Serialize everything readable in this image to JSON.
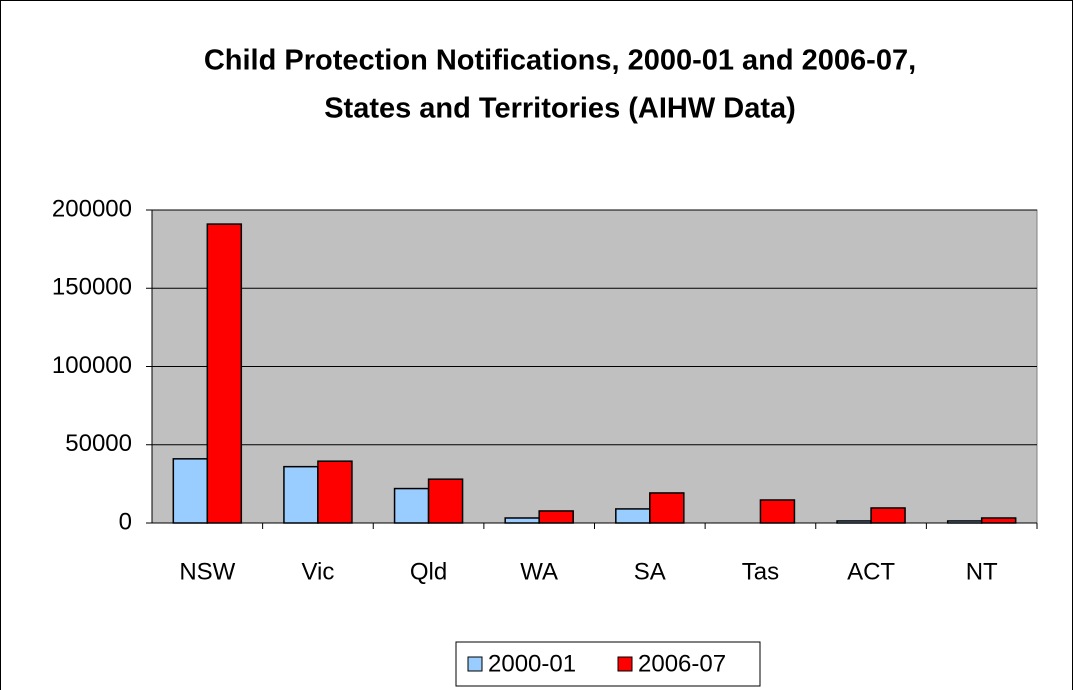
{
  "chart_data": {
    "type": "bar",
    "title": [
      "Child Protection Notifications, 2000-01 and 2006-07,",
      "States and Territories (AIHW Data)"
    ],
    "categories": [
      "NSW",
      "Vic",
      "Qld",
      "WA",
      "SA",
      "Tas",
      "ACT",
      "NT"
    ],
    "series": [
      {
        "name": "2000-01",
        "color": "#99ccff",
        "values": [
          41000,
          36000,
          22000,
          3200,
          9000,
          null,
          1300,
          1300
        ]
      },
      {
        "name": "2006-07",
        "color": "#ff0000",
        "values": [
          191000,
          39500,
          28000,
          7700,
          19200,
          14700,
          9600,
          3200
        ]
      }
    ],
    "ylim": [
      0,
      200000
    ],
    "yticks": [
      0,
      50000,
      100000,
      150000,
      200000
    ],
    "grid": true,
    "legend": "bottom",
    "plot_background": "#c0c0c0"
  }
}
